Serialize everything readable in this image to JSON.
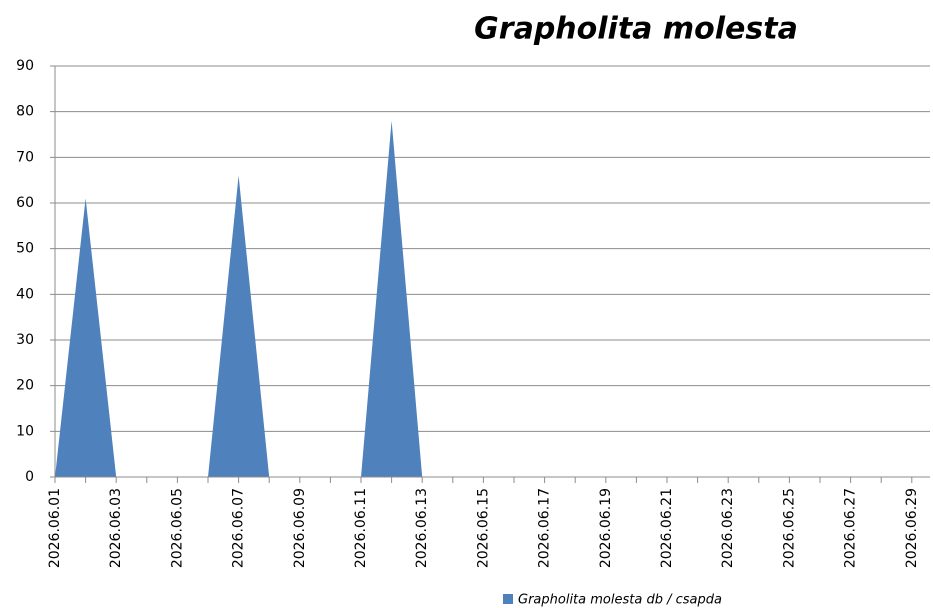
{
  "chart_data": {
    "type": "area",
    "title": "Grapholita molesta",
    "categories": [
      "2026.06.01",
      null,
      "2026.06.03",
      null,
      "2026.06.05",
      null,
      "2026.06.07",
      null,
      "2026.06.09",
      null,
      "2026.06.11",
      null,
      "2026.06.13",
      null,
      "2026.06.15",
      null,
      "2026.06.17",
      null,
      "2026.06.19",
      null,
      "2026.06.21",
      null,
      "2026.06.23",
      null,
      "2026.06.25",
      null,
      "2026.06.27",
      null,
      "2026.06.29"
    ],
    "series": [
      {
        "name": "Grapholita molesta db / csapda",
        "color": "#4f81bd",
        "values": [
          0,
          61,
          0,
          0,
          0,
          0,
          66,
          0,
          0,
          0,
          0,
          78,
          0,
          0,
          0,
          0,
          0,
          0,
          0,
          0,
          0,
          0,
          0,
          0,
          0,
          0,
          0,
          0,
          0
        ]
      }
    ],
    "ylim": [
      0,
      90
    ],
    "yticks": [
      0,
      10,
      20,
      30,
      40,
      50,
      60,
      70,
      80,
      90
    ],
    "grid": true,
    "legend": "bottom"
  }
}
